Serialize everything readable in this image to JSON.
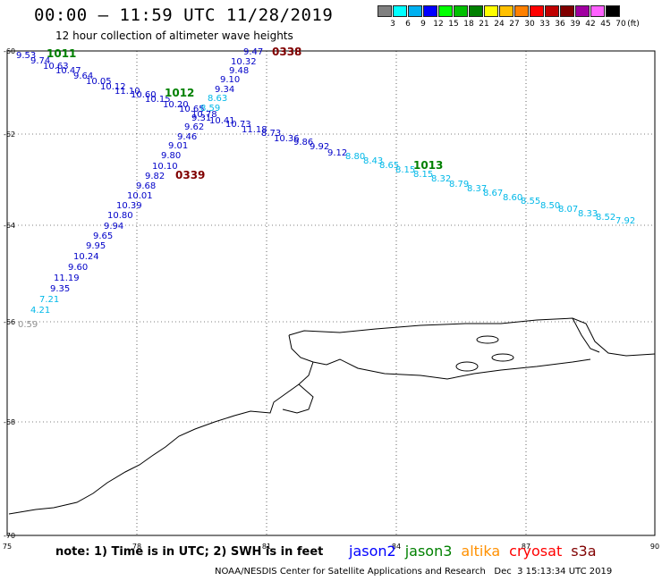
{
  "header": {
    "title": "00:00 – 11:59 UTC 11/28/2019",
    "subtitle": "12 hour collection of altimeter wave heights"
  },
  "scale_legend": {
    "colors": [
      "#808080",
      "#00ffff",
      "#00b0f0",
      "#0000ff",
      "#00ff00",
      "#00c000",
      "#008000",
      "#ffff00",
      "#ffc000",
      "#ff8000",
      "#ff0000",
      "#c00000",
      "#800000",
      "#a000a0",
      "#ff60ff",
      "#000000"
    ],
    "labels": [
      "3",
      "6",
      "9",
      "12",
      "15",
      "18",
      "21",
      "24",
      "27",
      "30",
      "33",
      "36",
      "39",
      "42",
      "45",
      "70"
    ],
    "unit": "(ft)"
  },
  "axes": {
    "x_ticks": [
      "75",
      "78",
      "81",
      "84",
      "87",
      "90"
    ],
    "y_ticks": [
      "-60",
      "-62",
      "-64",
      "-66",
      "-68",
      "-70"
    ]
  },
  "tracks": [
    {
      "satellite": "jason2",
      "values": [
        "9.53",
        "9.74",
        "10.63",
        "10.47",
        "9.64",
        "10.05",
        "10.12",
        "11.10",
        "10.60",
        "10.15",
        "10.20",
        "10.65",
        "10.78",
        "9.31",
        "10.41",
        "10.73",
        "11.18",
        "8.73",
        "10.36",
        "9.86",
        "9.92",
        "9.12"
      ],
      "color": "#0000c8"
    },
    {
      "satellite": "jason2",
      "values": [
        "9.47",
        "10.32",
        "9.48",
        "9.10",
        "9.34",
        "9.62",
        "9.46",
        "9.01",
        "9.80",
        "10.10",
        "9.82",
        "9.68",
        "10.01",
        "10.39",
        "10.80",
        "9.94",
        "9.65",
        "9.95",
        "10.24",
        "9.60",
        "11.19",
        "9.35"
      ],
      "color": "#0000c8"
    },
    {
      "satellite": "cyan",
      "values": [
        "8.63",
        "8.59",
        "8.80",
        "8.43",
        "8.65",
        "8.15",
        "8.15",
        "8.32",
        "8.79",
        "8.37",
        "8.67",
        "8.60",
        "8.55",
        "8.50",
        "8.07",
        "8.33",
        "8.52",
        "7.92",
        "7.21",
        "4.21"
      ],
      "color": "#00b8e8"
    }
  ],
  "stray_value": "0.59",
  "pass_labels": [
    {
      "text": "1011",
      "color": "#008000"
    },
    {
      "text": "1012",
      "color": "#008000"
    },
    {
      "text": "1013",
      "color": "#008000"
    },
    {
      "text": "0338",
      "color": "#800000"
    },
    {
      "text": "0339",
      "color": "#800000"
    }
  ],
  "footer": {
    "note": "note: 1) Time is in UTC; 2) SWH is in feet",
    "satellites": [
      {
        "name": "jason2",
        "color": "#0000ff"
      },
      {
        "name": "jason3",
        "color": "#008000"
      },
      {
        "name": "altika",
        "color": "#ff9000"
      },
      {
        "name": "cryosat",
        "color": "#ff0000"
      },
      {
        "name": "s3a",
        "color": "#800000"
      }
    ],
    "credit": "NOAA/NESDIS Center for Satellite Applications and Research   Dec  3 15:13:34 UTC 2019"
  }
}
